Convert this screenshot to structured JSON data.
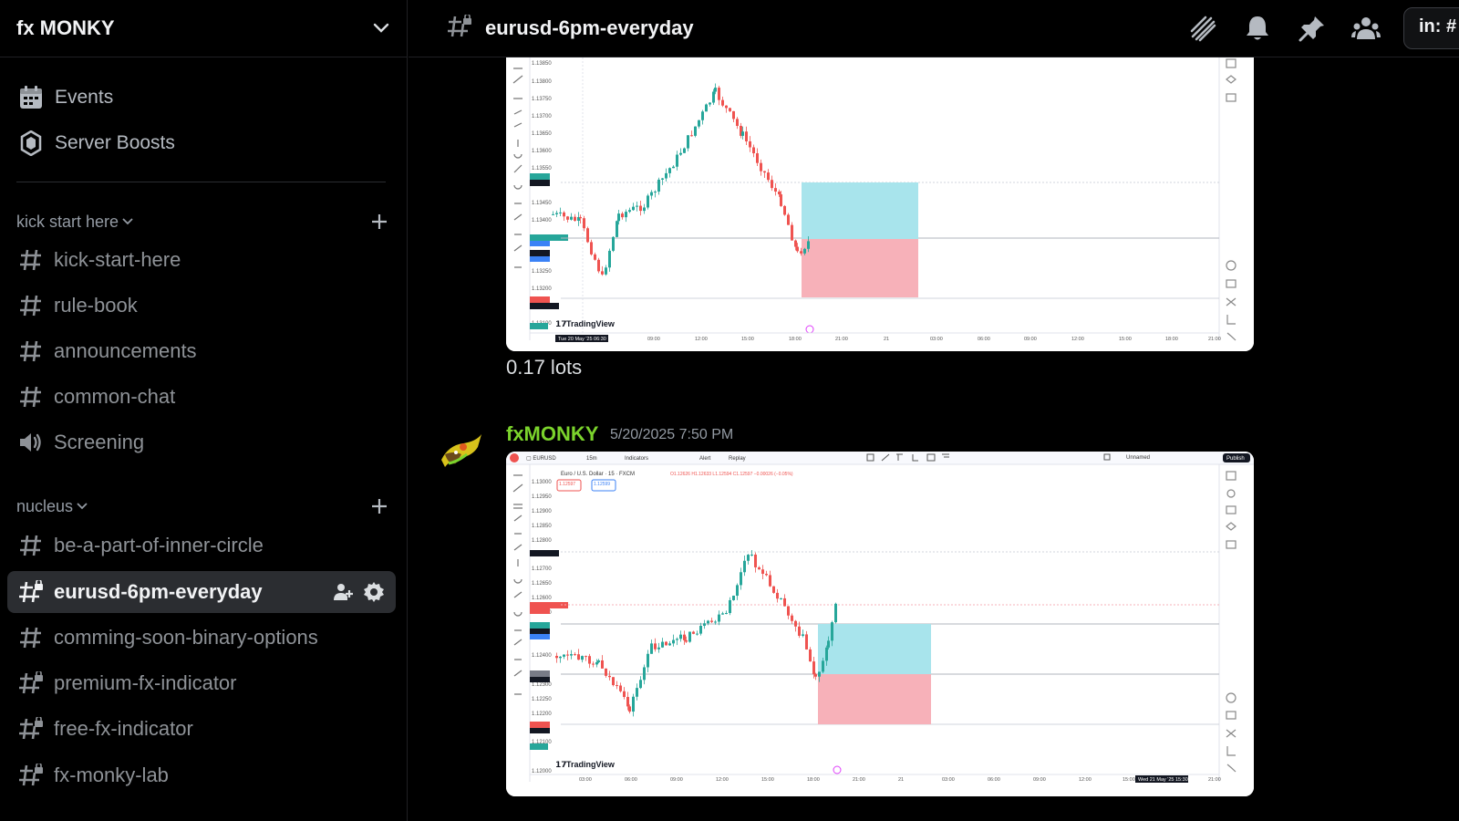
{
  "server": {
    "name": "fx MONKY"
  },
  "sidebar_top": [
    {
      "label": "Events",
      "icon": "calendar-icon"
    },
    {
      "label": "Server Boosts",
      "icon": "boost-gem-icon"
    }
  ],
  "categories": [
    {
      "label": "kick start here",
      "channels": [
        {
          "label": "kick-start-here",
          "icon": "hash-icon"
        },
        {
          "label": "rule-book",
          "icon": "hash-icon"
        },
        {
          "label": "announcements",
          "icon": "hash-icon"
        },
        {
          "label": "common-chat",
          "icon": "hash-icon"
        },
        {
          "label": "Screening",
          "icon": "speaker-icon"
        }
      ]
    },
    {
      "label": "nucleus",
      "channels": [
        {
          "label": "be-a-part-of-inner-circle",
          "icon": "hash-icon"
        },
        {
          "label": "eurusd-6pm-everyday",
          "icon": "locked-hash-icon",
          "active": true
        },
        {
          "label": "comming-soon-binary-options",
          "icon": "hash-icon"
        },
        {
          "label": "premium-fx-indicator",
          "icon": "locked-hash-icon"
        },
        {
          "label": "free-fx-indicator",
          "icon": "locked-hash-icon"
        },
        {
          "label": "fx-monky-lab",
          "icon": "locked-hash-icon"
        }
      ]
    }
  ],
  "header": {
    "channel": "eurusd-6pm-everyday",
    "search_value": "in: #"
  },
  "messages": [
    {
      "text": "0.17 lots"
    },
    {
      "author": "fxMONKY",
      "timestamp": "5/20/2025 7:50 PM",
      "author_color": "#7bd32c"
    }
  ],
  "chart_text": {
    "brand": "TradingView",
    "symbol_bar": "Euro / U.S. Dollar · 15 · FXCM",
    "indicators": "Indicators",
    "alert": "Alert",
    "replay": "Replay",
    "publish": "Publish",
    "unnamed": "Unnamed",
    "date_top": "Tue 20 May '25  06:30",
    "date_bottom": "Wed 21 May '25  15:30"
  },
  "colors": {
    "up": "#26a69a",
    "down": "#ef5350",
    "profit_zone": "#a8e4ec",
    "loss_zone": "#f7b1b9",
    "active_bg": "#2b2d31"
  }
}
